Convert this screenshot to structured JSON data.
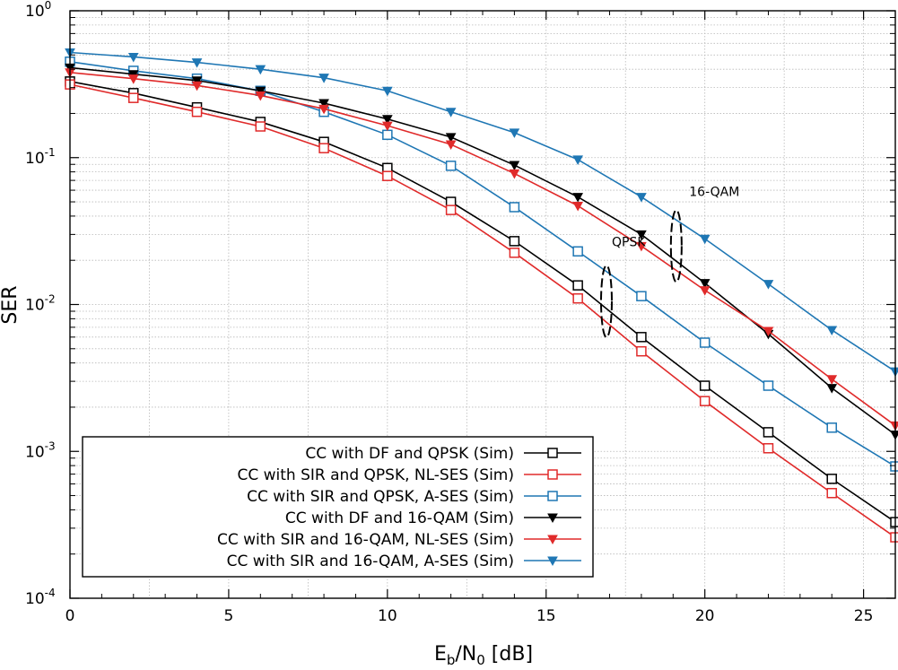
{
  "chart_data": {
    "type": "line",
    "title": "",
    "xlabel": {
      "main": "E",
      "sub1": "b",
      "mid": "/N",
      "sub2": "0",
      "tail": " [dB]"
    },
    "ylabel": "SER",
    "xlim": [
      0,
      26
    ],
    "ylim": [
      0.0001,
      1
    ],
    "yscale": "log",
    "grid": true,
    "legend_position": "bottom-left",
    "x_ticks": [
      0,
      5,
      10,
      15,
      20,
      25
    ],
    "x_tick_labels": [
      "0",
      "5",
      "10",
      "15",
      "20",
      "25"
    ],
    "y_ticks": [
      {
        "value": 1,
        "base": "10",
        "exp": "0"
      },
      {
        "value": 0.1,
        "base": "10",
        "exp": "-1"
      },
      {
        "value": 0.01,
        "base": "10",
        "exp": "-2"
      },
      {
        "value": 0.001,
        "base": "10",
        "exp": "-3"
      },
      {
        "value": 0.0001,
        "base": "10",
        "exp": "-4"
      }
    ],
    "series": [
      {
        "name": "CC with DF and QPSK (Sim)",
        "color": "#000000",
        "marker": "square",
        "x": [
          0,
          2,
          4,
          6,
          8,
          10,
          12,
          14,
          16,
          18,
          20,
          22,
          24,
          26
        ],
        "y": [
          0.33,
          0.275,
          0.22,
          0.175,
          0.128,
          0.085,
          0.05,
          0.027,
          0.0135,
          0.006,
          0.0028,
          0.00135,
          0.00065,
          0.00033
        ]
      },
      {
        "name": "CC with SIR and QPSK, NL-SES (Sim)",
        "color": "#e02a2a",
        "marker": "square",
        "x": [
          0,
          2,
          4,
          6,
          8,
          10,
          12,
          14,
          16,
          18,
          20,
          22,
          24,
          26
        ],
        "y": [
          0.315,
          0.255,
          0.205,
          0.163,
          0.116,
          0.075,
          0.044,
          0.0225,
          0.011,
          0.0048,
          0.0022,
          0.00105,
          0.00052,
          0.00026
        ]
      },
      {
        "name": "CC with SIR and QPSK, A-SES (Sim)",
        "color": "#1f77b4",
        "marker": "square",
        "x": [
          0,
          2,
          4,
          6,
          8,
          10,
          12,
          14,
          16,
          18,
          20,
          22,
          24,
          26
        ],
        "y": [
          0.45,
          0.39,
          0.345,
          0.285,
          0.205,
          0.143,
          0.088,
          0.046,
          0.023,
          0.0114,
          0.0055,
          0.0028,
          0.00145,
          0.00079
        ]
      },
      {
        "name": "CC with DF and 16-QAM (Sim)",
        "color": "#000000",
        "marker": "triangle-down",
        "x": [
          0,
          2,
          4,
          6,
          8,
          10,
          12,
          14,
          16,
          18,
          20,
          22,
          24,
          26
        ],
        "y": [
          0.41,
          0.37,
          0.335,
          0.285,
          0.235,
          0.183,
          0.138,
          0.089,
          0.054,
          0.03,
          0.014,
          0.0063,
          0.0027,
          0.0013
        ]
      },
      {
        "name": "CC with SIR and 16-QAM, NL-SES (Sim)",
        "color": "#e02a2a",
        "marker": "triangle-down",
        "x": [
          0,
          2,
          4,
          6,
          8,
          10,
          12,
          14,
          16,
          18,
          20,
          22,
          24,
          26
        ],
        "y": [
          0.38,
          0.345,
          0.31,
          0.265,
          0.215,
          0.165,
          0.123,
          0.078,
          0.047,
          0.025,
          0.0125,
          0.0066,
          0.0031,
          0.0015
        ]
      },
      {
        "name": "CC with SIR and 16-QAM, A-SES (Sim)",
        "color": "#1f77b4",
        "marker": "triangle-down",
        "x": [
          0,
          2,
          4,
          6,
          8,
          10,
          12,
          14,
          16,
          18,
          20,
          22,
          24,
          26
        ],
        "y": [
          0.52,
          0.485,
          0.445,
          0.4,
          0.35,
          0.285,
          0.205,
          0.148,
          0.097,
          0.054,
          0.028,
          0.0138,
          0.0067,
          0.0035
        ]
      }
    ],
    "annotations": [
      {
        "text": "16-QAM",
        "x": 20.3,
        "y": 0.055,
        "ellipse_x": 19.1,
        "ellipse_y": 0.025
      },
      {
        "text": "QPSK",
        "x": 17.6,
        "y": 0.025,
        "ellipse_x": 16.9,
        "ellipse_y": 0.0105
      }
    ]
  }
}
